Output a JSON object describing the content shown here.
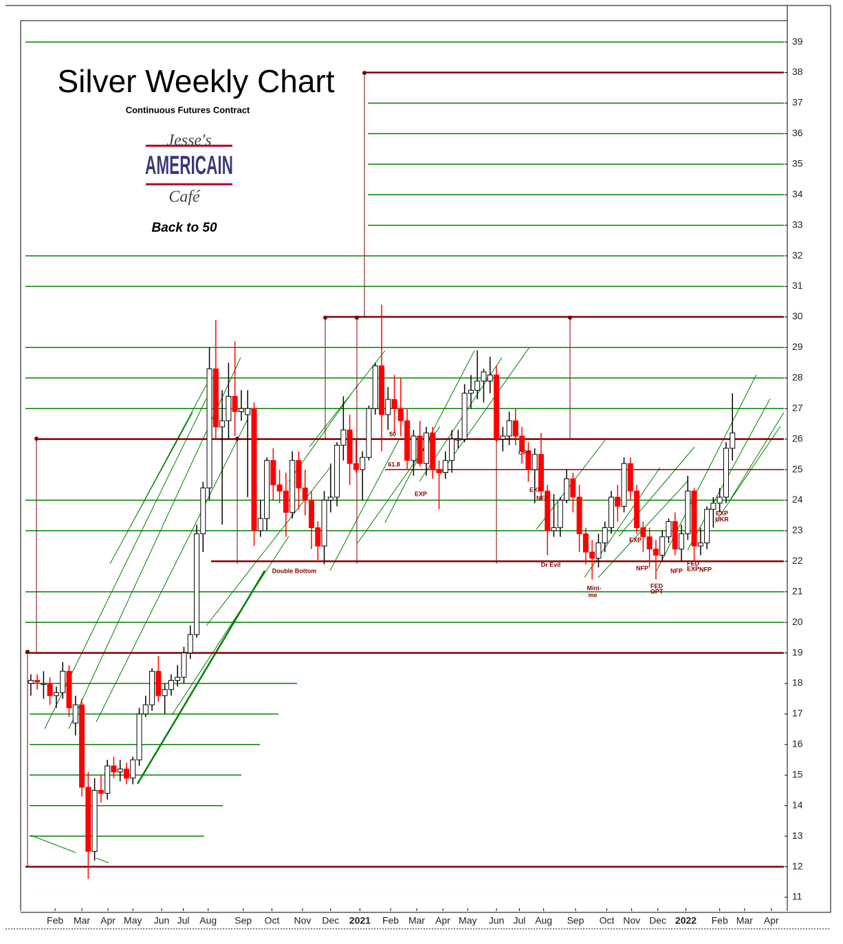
{
  "chart_data": {
    "type": "candlestick",
    "title": "Silver Weekly Chart",
    "subtitle": "Continuous Futures Contract",
    "logo": {
      "top": "Jesse's",
      "middle": "AMERICAIN",
      "bottom": "Café"
    },
    "tagline": "Back to 50",
    "up_color": "#ffffff",
    "down_color": "#ff0000",
    "grid_color": "#008000",
    "level_color": "#800000",
    "ylim": [
      10.55,
      39.7
    ],
    "yticks": [
      11,
      12,
      13,
      14,
      15,
      16,
      17,
      18,
      19,
      20,
      21,
      22,
      23,
      24,
      25,
      26,
      27,
      28,
      29,
      30,
      31,
      32,
      33,
      34,
      35,
      36,
      37,
      38,
      39
    ],
    "xlim": [
      -1.6,
      118.6
    ],
    "xticks": [
      {
        "value": 3.8,
        "label": "Feb"
      },
      {
        "value": 8.0,
        "label": "Mar"
      },
      {
        "value": 12.1,
        "label": "Apr"
      },
      {
        "value": 16.0,
        "label": "May"
      },
      {
        "value": 20.5,
        "label": "Jun"
      },
      {
        "value": 23.9,
        "label": "Jul"
      },
      {
        "value": 27.8,
        "label": "Aug"
      },
      {
        "value": 33.3,
        "label": "Sep"
      },
      {
        "value": 37.8,
        "label": "Oct"
      },
      {
        "value": 42.6,
        "label": "Nov"
      },
      {
        "value": 47.0,
        "label": "Dec"
      },
      {
        "value": 51.6,
        "label": "2021"
      },
      {
        "value": 56.4,
        "label": "Feb"
      },
      {
        "value": 60.5,
        "label": "Mar"
      },
      {
        "value": 64.6,
        "label": "Apr"
      },
      {
        "value": 68.5,
        "label": "May"
      },
      {
        "value": 73.0,
        "label": "Jun"
      },
      {
        "value": 76.6,
        "label": "Jul"
      },
      {
        "value": 80.4,
        "label": "Aug"
      },
      {
        "value": 85.4,
        "label": "Sep"
      },
      {
        "value": 90.3,
        "label": "Oct"
      },
      {
        "value": 94.2,
        "label": "Nov"
      },
      {
        "value": 98.3,
        "label": "Dec"
      },
      {
        "value": 102.7,
        "label": "2022"
      },
      {
        "value": 108.0,
        "label": "Feb"
      },
      {
        "value": 111.9,
        "label": "Mar"
      },
      {
        "value": 116.1,
        "label": "Apr"
      }
    ],
    "levels": [
      38,
      30,
      26,
      25,
      22,
      19,
      12
    ],
    "annotations": [
      "50",
      "61.8",
      "Double Bottom",
      "Dr Evil",
      "Mini-",
      "me",
      "EXP",
      "EXP",
      "NFP",
      "OPT",
      "EXP",
      "NFP",
      "FED",
      "OPT",
      "NFP",
      "FED",
      "EXP",
      "NFP",
      "EXP",
      "UKR"
    ],
    "ohlc": [
      [
        18.0,
        18.3,
        17.6,
        18.1
      ],
      [
        18.1,
        18.3,
        17.8,
        18.05
      ],
      [
        18.0,
        18.4,
        17.5,
        18.0
      ],
      [
        18.0,
        18.2,
        17.3,
        17.6
      ],
      [
        17.6,
        17.9,
        17.2,
        17.7
      ],
      [
        17.7,
        18.7,
        17.5,
        18.4
      ],
      [
        18.4,
        18.6,
        16.9,
        17.2
      ],
      [
        16.7,
        17.6,
        16.3,
        17.3
      ],
      [
        17.3,
        17.5,
        14.3,
        14.6
      ],
      [
        14.6,
        15.1,
        11.6,
        12.5
      ],
      [
        12.5,
        14.9,
        12.2,
        14.5
      ],
      [
        14.5,
        15.0,
        14.1,
        14.4
      ],
      [
        14.4,
        15.5,
        14.2,
        15.3
      ],
      [
        15.3,
        15.6,
        14.9,
        15.1
      ],
      [
        15.1,
        15.5,
        14.8,
        15.2
      ],
      [
        15.2,
        15.4,
        14.7,
        14.9
      ],
      [
        14.9,
        15.6,
        14.7,
        15.5
      ],
      [
        15.5,
        17.2,
        15.3,
        17.0
      ],
      [
        17.0,
        17.6,
        16.9,
        17.3
      ],
      [
        17.3,
        18.5,
        17.1,
        18.4
      ],
      [
        18.4,
        18.9,
        17.4,
        17.6
      ],
      [
        17.6,
        18.0,
        17.0,
        17.8
      ],
      [
        17.8,
        18.3,
        17.6,
        18.1
      ],
      [
        18.1,
        18.6,
        17.9,
        18.2
      ],
      [
        18.2,
        19.2,
        18.0,
        19.0
      ],
      [
        19.0,
        19.9,
        18.8,
        19.6
      ],
      [
        19.6,
        23.2,
        19.5,
        22.9
      ],
      [
        22.9,
        24.6,
        22.3,
        24.4
      ],
      [
        24.4,
        29.0,
        24.0,
        28.3
      ],
      [
        28.3,
        29.9,
        26.0,
        26.4
      ],
      [
        26.4,
        27.6,
        23.2,
        26.6
      ],
      [
        26.6,
        28.5,
        26.0,
        27.4
      ],
      [
        27.4,
        29.2,
        26.1,
        26.9
      ],
      [
        26.9,
        27.6,
        26.6,
        27.0
      ],
      [
        26.8,
        27.6,
        24.1,
        27.0
      ],
      [
        27.0,
        27.2,
        22.5,
        23.0
      ],
      [
        23.0,
        24.0,
        22.8,
        23.4
      ],
      [
        23.4,
        25.4,
        23.0,
        25.3
      ],
      [
        25.3,
        25.7,
        24.0,
        24.5
      ],
      [
        24.5,
        25.0,
        23.9,
        24.3
      ],
      [
        24.3,
        24.9,
        22.8,
        23.6
      ],
      [
        23.6,
        25.6,
        23.4,
        25.3
      ],
      [
        25.3,
        25.6,
        23.7,
        24.4
      ],
      [
        24.4,
        25.0,
        23.5,
        24.0
      ],
      [
        24.0,
        24.3,
        22.4,
        23.1
      ],
      [
        23.1,
        23.3,
        22.0,
        22.5
      ],
      [
        22.5,
        24.3,
        21.9,
        24.0
      ],
      [
        24.0,
        25.2,
        23.6,
        24.1
      ],
      [
        24.1,
        25.9,
        23.8,
        25.8
      ],
      [
        25.8,
        27.4,
        25.3,
        26.3
      ],
      [
        26.3,
        26.8,
        24.5,
        25.2
      ],
      [
        25.2,
        26.0,
        24.9,
        25.0
      ],
      [
        25.0,
        25.6,
        24.0,
        25.4
      ],
      [
        25.4,
        27.1,
        25.3,
        27.0
      ],
      [
        27.0,
        28.5,
        26.8,
        28.4
      ],
      [
        28.4,
        30.4,
        25.6,
        26.8
      ],
      [
        26.8,
        27.7,
        26.3,
        27.3
      ],
      [
        27.3,
        28.1,
        26.2,
        27.0
      ],
      [
        27.0,
        28.0,
        26.1,
        26.6
      ],
      [
        26.6,
        27.0,
        25.0,
        25.3
      ],
      [
        25.3,
        26.3,
        24.8,
        26.1
      ],
      [
        26.1,
        26.6,
        25.1,
        25.2
      ],
      [
        25.2,
        26.4,
        24.8,
        26.2
      ],
      [
        26.2,
        26.4,
        24.7,
        25.0
      ],
      [
        25.0,
        25.3,
        23.7,
        24.9
      ],
      [
        24.9,
        25.6,
        24.7,
        25.3
      ],
      [
        25.3,
        26.3,
        24.9,
        26.0
      ],
      [
        26.0,
        26.3,
        25.7,
        26.0
      ],
      [
        26.0,
        27.8,
        25.9,
        27.5
      ],
      [
        27.5,
        28.1,
        27.0,
        27.6
      ],
      [
        27.6,
        28.9,
        27.3,
        27.9
      ],
      [
        27.9,
        28.3,
        27.2,
        28.2
      ],
      [
        27.9,
        28.7,
        27.5,
        28.1
      ],
      [
        28.1,
        28.4,
        25.9,
        26.0
      ],
      [
        26.0,
        26.4,
        25.6,
        26.1
      ],
      [
        26.1,
        26.9,
        25.8,
        26.6
      ],
      [
        26.6,
        27.0,
        25.8,
        26.1
      ],
      [
        26.1,
        26.4,
        25.2,
        25.6
      ],
      [
        25.6,
        25.9,
        24.6,
        25.0
      ],
      [
        25.0,
        25.7,
        23.9,
        25.5
      ],
      [
        25.5,
        26.2,
        24.0,
        24.3
      ],
      [
        24.3,
        24.5,
        22.2,
        23.0
      ],
      [
        23.0,
        24.2,
        22.8,
        23.1
      ],
      [
        23.1,
        24.1,
        22.8,
        24.0
      ],
      [
        24.0,
        25.0,
        23.9,
        24.7
      ],
      [
        24.7,
        24.9,
        23.6,
        24.1
      ],
      [
        24.1,
        24.5,
        22.3,
        22.9
      ],
      [
        22.9,
        23.1,
        21.9,
        22.3
      ],
      [
        22.3,
        22.7,
        21.4,
        22.1
      ],
      [
        22.1,
        22.9,
        21.8,
        22.6
      ],
      [
        22.6,
        23.3,
        22.3,
        23.1
      ],
      [
        23.1,
        24.3,
        22.9,
        24.1
      ],
      [
        24.1,
        24.5,
        23.3,
        23.8
      ],
      [
        23.8,
        25.4,
        23.6,
        25.2
      ],
      [
        25.2,
        25.4,
        24.0,
        24.3
      ],
      [
        24.3,
        24.5,
        22.9,
        23.1
      ],
      [
        23.1,
        23.3,
        22.3,
        22.8
      ],
      [
        22.8,
        23.1,
        21.8,
        22.4
      ],
      [
        22.4,
        22.7,
        21.4,
        22.2
      ],
      [
        22.2,
        23.0,
        22.0,
        22.8
      ],
      [
        22.8,
        23.4,
        22.6,
        23.3
      ],
      [
        23.3,
        23.6,
        22.2,
        22.4
      ],
      [
        22.4,
        23.2,
        22.0,
        22.9
      ],
      [
        22.9,
        24.8,
        22.7,
        24.3
      ],
      [
        24.3,
        24.4,
        22.0,
        22.5
      ],
      [
        22.5,
        23.1,
        22.2,
        22.6
      ],
      [
        22.6,
        23.8,
        22.4,
        23.7
      ],
      [
        23.7,
        24.1,
        23.1,
        23.9
      ],
      [
        23.9,
        24.4,
        23.6,
        24.1
      ],
      [
        24.1,
        25.9,
        23.9,
        25.7
      ],
      [
        25.7,
        27.5,
        25.3,
        26.2
      ]
    ]
  }
}
